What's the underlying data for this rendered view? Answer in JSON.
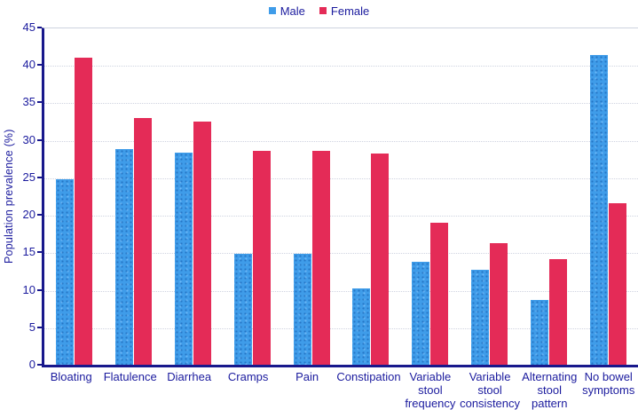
{
  "legend": {
    "male_label": "Male",
    "female_label": "Female"
  },
  "axes": {
    "y_title": "Population prevalence (%)",
    "y_ticks": [
      45,
      40,
      35,
      30,
      25,
      20,
      15,
      10,
      5,
      0
    ]
  },
  "colors": {
    "male_bar": "#3f9ce9",
    "female_bar": "#e42b57",
    "axis_line": "#18188c",
    "label_text": "#1b1b9e",
    "gridline": "#cfd3e0"
  },
  "chart_data": {
    "type": "bar",
    "title": "",
    "categories": [
      "Bloating",
      "Flatulence",
      "Diarrhea",
      "Cramps",
      "Pain",
      "Constipation",
      "Variable stool frequency",
      "Variable stool consistency",
      "Alternating stool pattern",
      "No bowel symptoms"
    ],
    "category_lines": [
      [
        "Bloating"
      ],
      [
        "Flatulence"
      ],
      [
        "Diarrhea"
      ],
      [
        "Cramps"
      ],
      [
        "Pain"
      ],
      [
        "Constipation"
      ],
      [
        "Variable",
        "stool",
        "frequency"
      ],
      [
        "Variable",
        "stool",
        "consistency"
      ],
      [
        "Alternating",
        "stool pattern"
      ],
      [
        "No bowel",
        "symptoms"
      ]
    ],
    "series": [
      {
        "name": "Male",
        "color": "#3f9ce9",
        "values": [
          24.7,
          28.8,
          28.3,
          14.8,
          14.8,
          10.2,
          13.7,
          12.7,
          8.7,
          41.3
        ]
      },
      {
        "name": "Female",
        "color": "#e42b57",
        "values": [
          41.0,
          32.9,
          32.4,
          28.5,
          28.5,
          28.2,
          19.0,
          16.2,
          14.1,
          21.6
        ]
      }
    ],
    "xlabel": "",
    "ylabel": "Population prevalence (%)",
    "ylim": [
      0,
      45
    ],
    "y_tick_step": 5,
    "grid": true,
    "legend_position": "top-center"
  }
}
